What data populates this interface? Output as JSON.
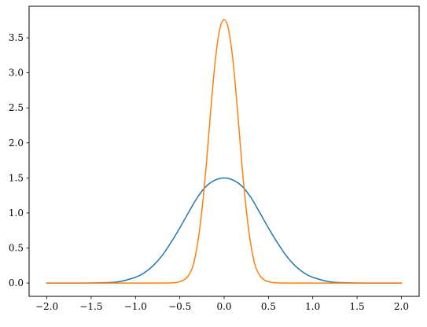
{
  "chart_data": {
    "type": "line",
    "title": "",
    "xlabel": "",
    "ylabel": "",
    "xlim": [
      -2.2,
      2.2
    ],
    "ylim": [
      -0.19,
      3.95
    ],
    "xticks": [
      -2.0,
      -1.5,
      -1.0,
      -0.5,
      0.0,
      0.5,
      1.0,
      1.5,
      2.0
    ],
    "xtick_labels": [
      "−2.0",
      "−1.5",
      "−1.0",
      "−0.5",
      "0.0",
      "0.5",
      "1.0",
      "1.5",
      "2.0"
    ],
    "yticks": [
      0.0,
      0.5,
      1.0,
      1.5,
      2.0,
      2.5,
      3.0,
      3.5
    ],
    "ytick_labels": [
      "0.0",
      "0.5",
      "1.0",
      "1.5",
      "2.0",
      "2.5",
      "3.0",
      "3.5"
    ],
    "grid": false,
    "legend": "none",
    "series": [
      {
        "color": "#1f77b4",
        "x": [
          -2.0,
          -1.8,
          -1.6,
          -1.4,
          -1.2,
          -1.0,
          -0.9,
          -0.8,
          -0.7,
          -0.6,
          -0.5,
          -0.4,
          -0.3,
          -0.2,
          -0.1,
          0.0,
          0.1,
          0.2,
          0.3,
          0.4,
          0.5,
          0.6,
          0.7,
          0.8,
          0.9,
          1.0,
          1.2,
          1.4,
          1.6,
          1.8,
          2.0
        ],
        "y": [
          0.0,
          0.0,
          0.0,
          0.004,
          0.016,
          0.082,
          0.146,
          0.248,
          0.391,
          0.578,
          0.786,
          1.01,
          1.225,
          1.384,
          1.47,
          1.5,
          1.47,
          1.384,
          1.225,
          1.01,
          0.786,
          0.578,
          0.391,
          0.248,
          0.146,
          0.082,
          0.016,
          0.004,
          0.0,
          0.0,
          0.0
        ]
      },
      {
        "color": "#ff7f0e",
        "x": [
          -2.0,
          -1.0,
          -0.6,
          -0.5,
          -0.45,
          -0.4,
          -0.35,
          -0.3,
          -0.25,
          -0.2,
          -0.15,
          -0.1,
          -0.05,
          0.0,
          0.05,
          0.1,
          0.15,
          0.2,
          0.25,
          0.3,
          0.35,
          0.4,
          0.45,
          0.5,
          0.6,
          1.0,
          2.0
        ],
        "y": [
          0.0,
          0.0,
          0.002,
          0.02,
          0.047,
          0.112,
          0.252,
          0.557,
          1.047,
          1.703,
          2.478,
          3.173,
          3.617,
          3.76,
          3.617,
          3.173,
          2.478,
          1.703,
          1.047,
          0.557,
          0.252,
          0.112,
          0.047,
          0.02,
          0.002,
          0.0,
          0.0
        ]
      }
    ]
  }
}
